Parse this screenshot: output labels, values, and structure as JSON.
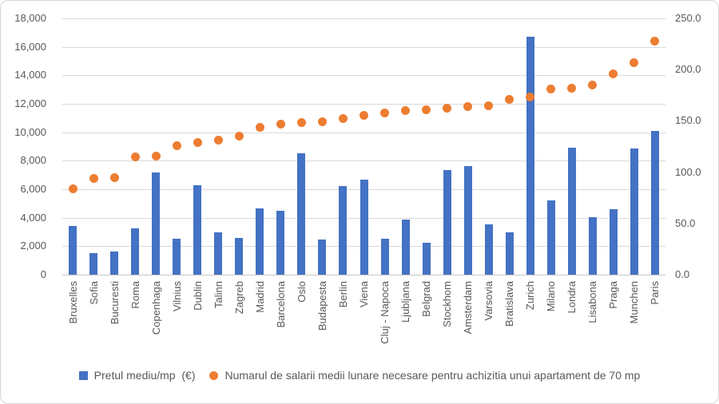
{
  "chart_data": {
    "type": "combo-bar-scatter",
    "title": "",
    "categories": [
      "Bruxelles",
      "Sofia",
      "Bucuresti",
      "Roma",
      "Copenhaga",
      "Vilnius",
      "Dublin",
      "Talinn",
      "Zagreb",
      "Madrid",
      "Barcelona",
      "Oslo",
      "Budapesta",
      "Berlin",
      "Viena",
      "Cluj - Napoca",
      "Ljubljana",
      "Belgrad",
      "Stockhom",
      "Amsterdam",
      "Varsovia",
      "Bratislava",
      "Zurich",
      "Milano",
      "Londra",
      "Lisabona",
      "Praga",
      "Munchen",
      "Paris"
    ],
    "series": [
      {
        "name": "Pretul mediu/mp  (€)",
        "type": "bar",
        "axis": "left",
        "color": "#4472C4",
        "values": [
          3400,
          1500,
          1600,
          3250,
          7150,
          2500,
          6300,
          3000,
          2600,
          4650,
          4500,
          8500,
          2450,
          6200,
          6700,
          2500,
          3850,
          2250,
          7350,
          7600,
          3550,
          3000,
          16700,
          5200,
          8900,
          4050,
          4600,
          8850,
          10100
        ]
      },
      {
        "name": "Numarul de salarii medii lunare necesare pentru achizitia unui apartament de 70 mp",
        "type": "scatter",
        "axis": "right",
        "color": "#ED7D31",
        "values": [
          84,
          94,
          95,
          115,
          116,
          126,
          129,
          131,
          135,
          144,
          147,
          148,
          149,
          152,
          155,
          158,
          160,
          161,
          162,
          164,
          165,
          171,
          173,
          181,
          182,
          185,
          196,
          207,
          228
        ]
      }
    ],
    "left_axis": {
      "min": 0,
      "max": 18000,
      "step": 2000,
      "tick_labels": [
        "18,000",
        "16,000",
        "14,000",
        "12,000",
        "10,000",
        "8,000",
        "6,000",
        "4,000",
        "2,000",
        "0"
      ]
    },
    "right_axis": {
      "min": 0,
      "max": 250,
      "step": 50,
      "tick_labels": [
        "250.0",
        "200.0",
        "150.0",
        "100.0",
        "50.0",
        "0.0"
      ]
    },
    "grid": true,
    "legend_position": "bottom"
  },
  "colors": {
    "bar": "#4472C4",
    "dot": "#ED7D31",
    "text": "#595959",
    "gridline": "#D9D9D9"
  }
}
